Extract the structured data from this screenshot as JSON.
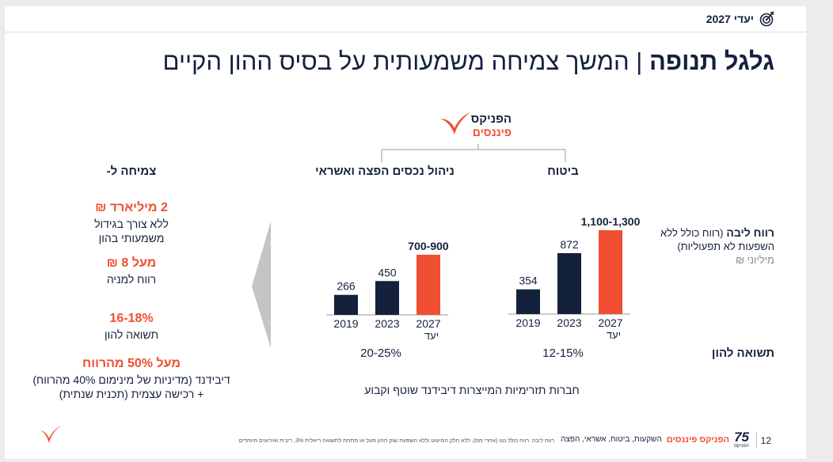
{
  "header": {
    "tag": "יעדי 2027",
    "icon": "target-icon"
  },
  "title": {
    "bold": "גלגל תנופה",
    "separator": "|",
    "rest": "המשך צמיחה משמעותית על בסיס ההון הקיים"
  },
  "logo": {
    "line1": "הפניקס",
    "line2": "פיננסים",
    "icon": "phoenix-logo-icon"
  },
  "segments": {
    "insurance": "ביטוח",
    "asset_mgmt": "ניהול נכסים הפצה ואשראי"
  },
  "row_labels": {
    "profit_bold": "רווח ליבה",
    "profit_paren": "(רווח כולל ללא",
    "profit_line2": "השפעות לא תפעוליות)",
    "profit_unit": "מיליוני ₪",
    "roe": "תשואה להון"
  },
  "roe": {
    "insurance": "12-15%",
    "asset_mgmt": "20-25%"
  },
  "dividend_note": "חברות תזרימיות המייצרות דיבידנד שוטף וקבוע",
  "growth": {
    "title": "צמיחה ל-",
    "items": [
      {
        "value": "2 מיליארד ₪",
        "desc": [
          "ללא צורך בגידול",
          "משמעותי בהון"
        ]
      },
      {
        "value": "מעל 8 ₪",
        "desc": [
          "רווח למניה"
        ]
      },
      {
        "value": "16-18%",
        "desc": [
          "תשואה להון"
        ]
      },
      {
        "value": "מעל 50% מהרווח",
        "desc": [
          "דיבידנד (מדיניות של מינימום 40% מהרווח)",
          "+ רכישה עצמית (תכנית שנתית)"
        ]
      }
    ]
  },
  "colors": {
    "navy": "#14213d",
    "orange": "#f04e30",
    "arrow": "#c4c4c4"
  },
  "chart_data": [
    {
      "type": "bar",
      "segment": "ביטוח",
      "categories": [
        "2019",
        "2023",
        "2027"
      ],
      "sublabels": [
        "",
        "",
        "יעד"
      ],
      "values": [
        354,
        872,
        1200
      ],
      "labels": [
        "354",
        "872",
        "1,100-1,300"
      ],
      "highlight_index": 2
    },
    {
      "type": "bar",
      "segment": "ניהול נכסים הפצה ואשראי",
      "categories": [
        "2019",
        "2023",
        "2027"
      ],
      "sublabels": [
        "",
        "",
        "יעד"
      ],
      "values": [
        266,
        450,
        800
      ],
      "labels": [
        "266",
        "450",
        "700-900"
      ],
      "highlight_index": 2
    }
  ],
  "footer": {
    "page": "12",
    "logo_bold": "הפניקס פיננסים",
    "logo_rest": "השקעות, ביטוח, אשראי, הפצה",
    "badge": "75",
    "badge_sub": "הפניקס",
    "note": "רווח ליבה: רווח כולל נטו (אחרי מס), ללא חלק המיעוט וללא השפעת שוק ההון מעל או מתחת לתשואה ריאלית 3%, ריבית ואירועים מיוחדים"
  }
}
